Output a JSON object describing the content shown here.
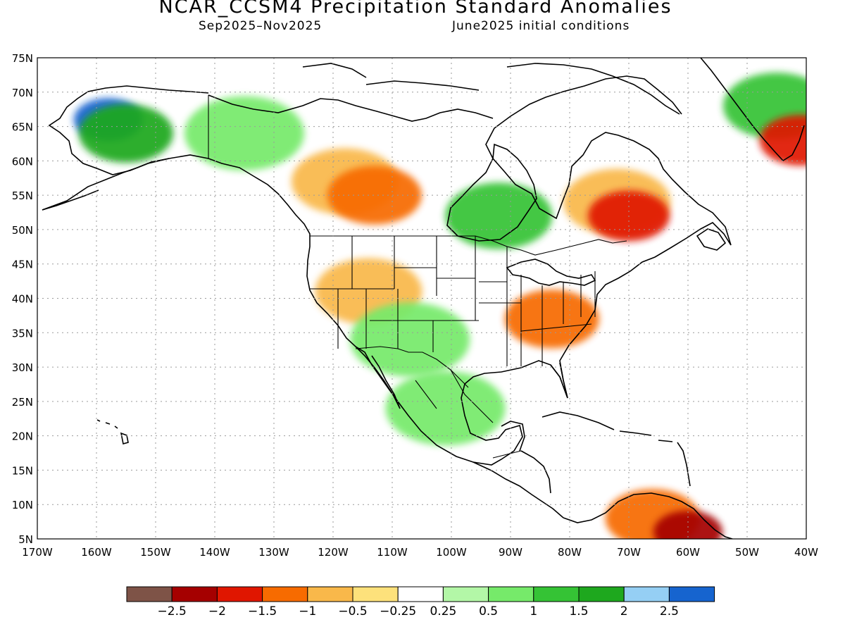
{
  "header": {
    "title": "NCAR_CCSM4 Precipitation Standard Anomalies",
    "subtitle_left": "Sep2025–Nov2025",
    "subtitle_right": "June2025 initial conditions"
  },
  "map": {
    "lon_range": [
      -170,
      -40
    ],
    "lat_range": [
      5,
      75
    ],
    "lat_ticks": [
      "75N",
      "70N",
      "65N",
      "60N",
      "55N",
      "50N",
      "45N",
      "40N",
      "35N",
      "30N",
      "25N",
      "20N",
      "15N",
      "10N",
      "5N"
    ],
    "lon_ticks": [
      "170W",
      "160W",
      "150W",
      "140W",
      "130W",
      "120W",
      "110W",
      "100W",
      "90W",
      "80W",
      "70W",
      "60W",
      "50W",
      "40W"
    ],
    "grid_lines": "dotted",
    "anomaly_regions": [
      {
        "name": "Alaska interior",
        "lon": -158,
        "lat": 66,
        "value": 2.5
      },
      {
        "name": "Alaska surround",
        "lon": -155,
        "lat": 64,
        "value": 1.5
      },
      {
        "name": "Yukon",
        "lon": -135,
        "lat": 64,
        "value": 0.5
      },
      {
        "name": "Western Canada",
        "lon": -118,
        "lat": 57,
        "value": -1.0
      },
      {
        "name": "Alberta core",
        "lon": -113,
        "lat": 55,
        "value": -1.5
      },
      {
        "name": "Ontario north",
        "lon": -92,
        "lat": 52,
        "value": 1.0
      },
      {
        "name": "Quebec",
        "lon": -72,
        "lat": 54,
        "value": -1.0
      },
      {
        "name": "Quebec core",
        "lon": -70,
        "lat": 52,
        "value": -2.0
      },
      {
        "name": "Ohio Valley",
        "lon": -83,
        "lat": 37,
        "value": -1.5
      },
      {
        "name": "Western US",
        "lon": -114,
        "lat": 41,
        "value": -1.0
      },
      {
        "name": "New Mexico",
        "lon": -107,
        "lat": 34,
        "value": 0.5
      },
      {
        "name": "Mexico west",
        "lon": -101,
        "lat": 24,
        "value": 0.5
      },
      {
        "name": "Greenland",
        "lon": -45,
        "lat": 68,
        "value": 1.0
      },
      {
        "name": "SE Greenland",
        "lon": -41,
        "lat": 63,
        "value": -2.0
      },
      {
        "name": "Venezuela",
        "lon": -66,
        "lat": 8,
        "value": -1.5
      },
      {
        "name": "Guyana",
        "lon": -60,
        "lat": 6,
        "value": -2.5
      }
    ]
  },
  "colorbar": {
    "colors": [
      "#7e5347",
      "#a50000",
      "#e01600",
      "#f76b00",
      "#f9b84a",
      "#fde17b",
      "#ffffff",
      "#b3f7a7",
      "#76ea6a",
      "#35c335",
      "#1ea81e",
      "#95cff4",
      "#1664cf"
    ],
    "labels": [
      "−2.5",
      "−2",
      "−1.5",
      "−1",
      "−0.5",
      "−0.25",
      "0.25",
      "0.5",
      "1",
      "1.5",
      "2",
      "2.5"
    ]
  }
}
